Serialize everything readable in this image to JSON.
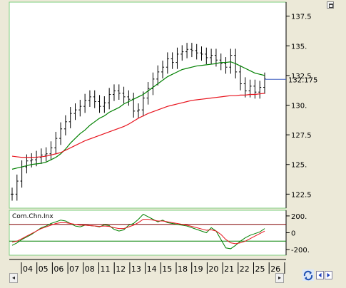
{
  "chart_data": [
    {
      "type": "line",
      "subtype": "candlestick",
      "title": "",
      "xlabel": "",
      "ylabel": "",
      "ylim": [
        121.5,
        138.5
      ],
      "yticks": [
        122.5,
        125,
        127.5,
        130,
        132.5,
        135,
        137.5
      ],
      "ytick_labels": [
        "122.5",
        "125.",
        "127.5",
        "130.",
        "132.5",
        "135.",
        "137.5"
      ],
      "last_price_label": "132.175",
      "last_price": 132.175,
      "grid": false,
      "series": [
        {
          "name": "",
          "kind": "price",
          "color": "#000000",
          "values": [
            122.5,
            123.6,
            124.8,
            125.3,
            125.4,
            125.6,
            125.8,
            125.9,
            126.4,
            127.2,
            128.0,
            128.6,
            129.3,
            129.6,
            129.9,
            130.4,
            130.7,
            130.3,
            129.9,
            130.2,
            130.9,
            131.2,
            131.0,
            130.7,
            130.5,
            129.5,
            129.6,
            130.6,
            131.4,
            132.2,
            132.8,
            133.2,
            133.9,
            133.6,
            134.3,
            134.5,
            134.7,
            134.6,
            134.4,
            134.3,
            134.0,
            134.2,
            133.8,
            133.5,
            133.2,
            134.2,
            132.8,
            131.8,
            131.2,
            131.6,
            131.1,
            131.5,
            132.2
          ]
        },
        {
          "name": "",
          "kind": "moving-average",
          "color": "#008000",
          "values": [
            124.6,
            124.7,
            124.8,
            124.9,
            125.0,
            125.05,
            125.1,
            125.2,
            125.4,
            125.6,
            125.9,
            126.3,
            126.8,
            127.2,
            127.6,
            127.9,
            128.3,
            128.6,
            128.9,
            129.1,
            129.4,
            129.6,
            129.8,
            130.1,
            130.3,
            130.5,
            130.7,
            130.9,
            131.2,
            131.5,
            131.8,
            132.1,
            132.4,
            132.6,
            132.8,
            133.0,
            133.1,
            133.2,
            133.3,
            133.35,
            133.4,
            133.45,
            133.5,
            133.6,
            133.6,
            133.65,
            133.5,
            133.3,
            133.1,
            132.9,
            132.7,
            132.6,
            132.5
          ]
        },
        {
          "name": "",
          "kind": "moving-average",
          "color": "#e8141e",
          "values": [
            125.7,
            125.65,
            125.6,
            125.6,
            125.6,
            125.62,
            125.65,
            125.7,
            125.8,
            125.9,
            126.0,
            126.2,
            126.4,
            126.6,
            126.8,
            127.0,
            127.15,
            127.3,
            127.45,
            127.6,
            127.75,
            127.9,
            128.05,
            128.2,
            128.4,
            128.65,
            128.9,
            129.1,
            129.3,
            129.45,
            129.6,
            129.75,
            129.9,
            130.0,
            130.1,
            130.2,
            130.3,
            130.4,
            130.45,
            130.5,
            130.55,
            130.6,
            130.65,
            130.7,
            130.75,
            130.8,
            130.8,
            130.85,
            130.85,
            130.9,
            130.9,
            130.95,
            131.0
          ]
        }
      ]
    },
    {
      "type": "line",
      "title": "Com.Chn.Inx",
      "xlabel": "",
      "ylabel": "",
      "ylim": [
        -250,
        250
      ],
      "yticks": [
        200,
        0,
        -200
      ],
      "ytick_labels": [
        "200.",
        "0",
        "-200."
      ],
      "reference_lines": [
        {
          "value": 100,
          "color": "#800000"
        },
        {
          "value": -100,
          "color": "#008000"
        }
      ],
      "grid": false,
      "series": [
        {
          "name": "",
          "color": "#008000",
          "values": [
            -150,
            -120,
            -80,
            -50,
            -20,
            20,
            60,
            80,
            110,
            130,
            150,
            140,
            110,
            80,
            70,
            90,
            85,
            80,
            70,
            95,
            85,
            40,
            20,
            35,
            90,
            110,
            160,
            220,
            190,
            160,
            130,
            150,
            120,
            110,
            100,
            90,
            80,
            60,
            40,
            20,
            0,
            60,
            20,
            -80,
            -180,
            -190,
            -150,
            -100,
            -60,
            -30,
            -10,
            10,
            50
          ]
        },
        {
          "name": "",
          "color": "#e8141e",
          "values": [
            -110,
            -100,
            -70,
            -40,
            -10,
            20,
            50,
            70,
            90,
            110,
            120,
            120,
            110,
            100,
            90,
            90,
            85,
            80,
            75,
            80,
            75,
            60,
            50,
            50,
            70,
            90,
            120,
            160,
            160,
            150,
            140,
            140,
            130,
            120,
            110,
            100,
            90,
            75,
            60,
            45,
            30,
            35,
            20,
            -20,
            -80,
            -120,
            -130,
            -120,
            -100,
            -70,
            -40,
            -10,
            20
          ]
        }
      ]
    }
  ],
  "x_axis": {
    "labels": [
      "04",
      "05",
      "06",
      "07",
      "08",
      "11",
      "12",
      "13",
      "14",
      "15",
      "18",
      "19",
      "20",
      "21",
      "22",
      "25",
      "26"
    ],
    "scroll_left_label": "◂",
    "scroll_right_label": "▸"
  },
  "icons": {
    "maximize": "maximize-icon",
    "refresh": "refresh-icon",
    "nav_left": "nav-left-icon",
    "nav_right": "nav-right-icon"
  },
  "colors": {
    "panel_border": "#7fcf7f",
    "price": "#000000",
    "ma_fast": "#008000",
    "ma_slow": "#e8141e",
    "last_price_line": "#4060c0"
  }
}
